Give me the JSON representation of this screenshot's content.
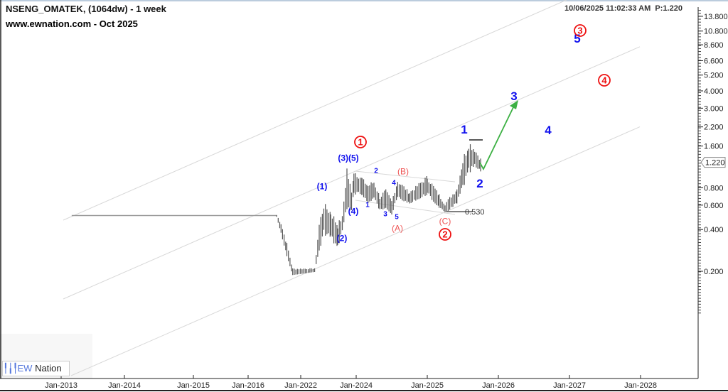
{
  "header": {
    "title": "NSENG_OMATEK, (1064dw) - 1 week",
    "subtitle": "www.ewnation.com  - Oct 2025",
    "timestamp": "10/06/2025 11:02:33 AM",
    "price_label": "P:1.220"
  },
  "logo": {
    "mark": "EW",
    "text": "Nation"
  },
  "chart_data": {
    "type": "ohlc-bar",
    "scale": "log",
    "ylim": [
      0.1,
      16
    ],
    "y_ticks": [
      "13.800",
      "10.800",
      "8.600",
      "6.600",
      "5.200",
      "4.000",
      "3.000",
      "2.200",
      "1.600",
      "0.800",
      "0.600",
      "0.400",
      "0.200"
    ],
    "y_tick_values": [
      13.8,
      10.8,
      8.6,
      6.6,
      5.2,
      4.0,
      3.0,
      2.2,
      1.6,
      0.8,
      0.6,
      0.4,
      0.2
    ],
    "last_price": 1.22,
    "last_price_label": "1.220",
    "x_ticks": [
      "Jan-2013",
      "Jan-2014",
      "Jan-2015",
      "Jan-2016",
      "Jan-2022",
      "Jan-2024",
      "Jan-2025",
      "Jan-2026",
      "Jan-2027",
      "Jan-2028"
    ],
    "price_path": [
      {
        "date": "2013-03",
        "high": 0.51,
        "low": 0.5
      },
      {
        "date": "2019-04",
        "high": 0.51,
        "low": 0.5
      },
      {
        "date": "2019-10",
        "high": 0.45,
        "low": 0.38
      },
      {
        "date": "2020-06",
        "high": 0.32,
        "low": 0.26
      },
      {
        "date": "2021-02",
        "high": 0.21,
        "low": 0.19
      },
      {
        "date": "2022-07",
        "high": 0.21,
        "low": 0.2
      },
      {
        "date": "2022-09",
        "high": 0.45,
        "low": 0.28
      },
      {
        "date": "2022-11",
        "high": 0.63,
        "low": 0.37
      },
      {
        "date": "2023-02",
        "high": 0.55,
        "low": 0.35
      },
      {
        "date": "2023-05",
        "high": 0.45,
        "low": 0.29
      },
      {
        "date": "2023-07",
        "high": 0.5,
        "low": 0.4
      },
      {
        "date": "2023-09",
        "high": 1.16,
        "low": 0.55
      },
      {
        "date": "2023-11",
        "high": 0.75,
        "low": 0.56
      },
      {
        "date": "2023-12",
        "high": 1.1,
        "low": 0.7
      },
      {
        "date": "2024-02",
        "high": 0.95,
        "low": 0.72
      },
      {
        "date": "2024-03",
        "high": 0.85,
        "low": 0.62
      },
      {
        "date": "2024-04",
        "high": 0.9,
        "low": 0.68
      },
      {
        "date": "2024-05",
        "high": 0.7,
        "low": 0.55
      },
      {
        "date": "2024-06",
        "high": 0.78,
        "low": 0.58
      },
      {
        "date": "2024-07",
        "high": 0.65,
        "low": 0.52
      },
      {
        "date": "2024-08",
        "high": 0.92,
        "low": 0.68
      },
      {
        "date": "2024-10",
        "high": 0.75,
        "low": 0.62
      },
      {
        "date": "2025-01",
        "high": 0.98,
        "low": 0.72
      },
      {
        "date": "2025-03",
        "high": 0.72,
        "low": 0.58
      },
      {
        "date": "2025-04",
        "high": 0.62,
        "low": 0.53
      },
      {
        "date": "2025-06",
        "high": 0.8,
        "low": 0.62
      },
      {
        "date": "2025-07",
        "high": 1.3,
        "low": 0.8
      },
      {
        "date": "2025-08",
        "high": 1.76,
        "low": 1.0
      },
      {
        "date": "2025-09",
        "high": 1.55,
        "low": 1.15
      },
      {
        "date": "2025-10",
        "high": 1.3,
        "low": 1.05
      }
    ],
    "annotations": {
      "low_level": "0.530",
      "wave_labels": [
        {
          "text": "1",
          "style": "red-circle"
        },
        {
          "text": "(3)(5)",
          "style": "blue"
        },
        {
          "text": "(1)",
          "style": "blue"
        },
        {
          "text": "(4)",
          "style": "blue"
        },
        {
          "text": "(2)",
          "style": "blue"
        },
        {
          "text": "2",
          "style": "blue-small"
        },
        {
          "text": "4",
          "style": "blue-small"
        },
        {
          "text": "1",
          "style": "blue-small"
        },
        {
          "text": "3",
          "style": "blue-small"
        },
        {
          "text": "5",
          "style": "blue-small"
        },
        {
          "text": "(B)",
          "style": "red-light"
        },
        {
          "text": "(A)",
          "style": "red-light"
        },
        {
          "text": "(C)",
          "style": "red-light"
        },
        {
          "text": "2",
          "style": "red-circle"
        },
        {
          "text": "1",
          "style": "blue-big"
        },
        {
          "text": "2",
          "style": "blue-big"
        },
        {
          "text": "3",
          "style": "blue-big"
        },
        {
          "text": "4",
          "style": "blue-big"
        },
        {
          "text": "5",
          "style": "blue-big"
        },
        {
          "text": "3",
          "style": "red-circle"
        },
        {
          "text": "4",
          "style": "red-circle"
        }
      ]
    }
  },
  "colors": {
    "bars": "#555555",
    "wave_blue": "#1010ee",
    "wave_red": "#ee1111",
    "red_light": "#ee5555",
    "projection": "#3cb043",
    "channel": "#d8d8d8"
  }
}
